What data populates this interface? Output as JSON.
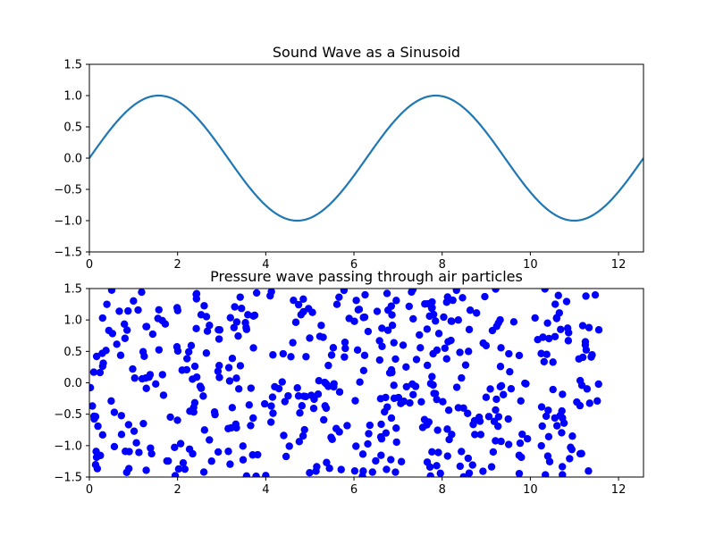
{
  "chart_data": [
    {
      "type": "line",
      "title": "Sound Wave as a Sinusoid",
      "xlabel": "",
      "ylabel": "",
      "xlim": [
        0,
        12.566
      ],
      "ylim": [
        -1.5,
        1.5
      ],
      "xticks": [
        "0",
        "2",
        "4",
        "6",
        "8",
        "10",
        "12"
      ],
      "yticks": [
        "−1.5",
        "−1.0",
        "−0.5",
        "0.0",
        "0.5",
        "1.0",
        "1.5"
      ],
      "grid": false,
      "series": [
        {
          "color": "#1f77b4",
          "function": "sin(x)",
          "x_range": [
            0,
            12.566
          ]
        }
      ]
    },
    {
      "type": "scatter",
      "title": "Pressure wave passing through air particles",
      "xlabel": "",
      "ylabel": "",
      "xlim": [
        0,
        12.566
      ],
      "ylim": [
        -1.5,
        1.5
      ],
      "xticks": [
        "0",
        "2",
        "4",
        "6",
        "8",
        "10",
        "12"
      ],
      "yticks": [
        "−1.5",
        "−1.0",
        "−0.5",
        "0.0",
        "0.5",
        "1.0",
        "1.5"
      ],
      "grid": false,
      "series": [
        {
          "color": "#0000ff",
          "point_count": 500,
          "x_range": [
            0,
            11.6
          ],
          "y_range": [
            -1.5,
            1.5
          ],
          "distribution": "uniform random"
        }
      ]
    }
  ]
}
